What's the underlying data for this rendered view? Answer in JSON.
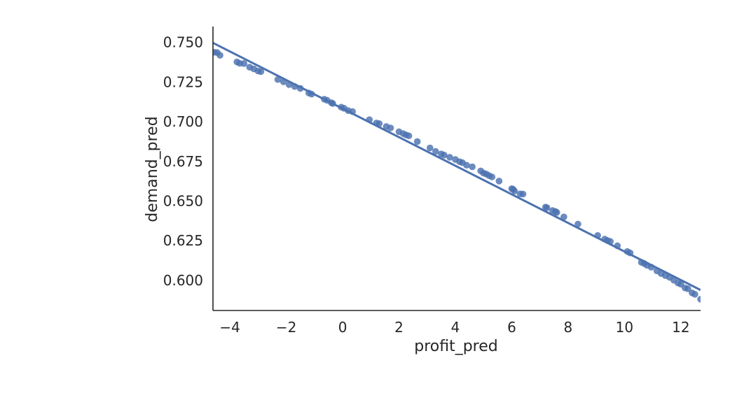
{
  "chart_data": {
    "type": "scatter",
    "title": "",
    "xlabel": "profit_pred",
    "ylabel": "demand_pred",
    "xlim": [
      -4.6,
      12.7
    ],
    "ylim": [
      0.581,
      0.76
    ],
    "x_ticks": [
      -4,
      -2,
      0,
      2,
      4,
      6,
      8,
      10,
      12
    ],
    "x_tick_labels": [
      "−4",
      "−2",
      "0",
      "2",
      "4",
      "6",
      "8",
      "10",
      "12"
    ],
    "y_ticks": [
      0.6,
      0.625,
      0.65,
      0.675,
      0.7,
      0.725,
      0.75
    ],
    "y_tick_labels": [
      "0.600",
      "0.625",
      "0.650",
      "0.675",
      "0.700",
      "0.725",
      "0.750"
    ],
    "grid": false,
    "spines": "left-bottom",
    "colors": {
      "point": "#4c72b0",
      "line": "#4c72b0",
      "axis": "#262626",
      "text": "#262626",
      "background": "#ffffff"
    },
    "regression_line": {
      "x": [
        -4.6,
        12.7
      ],
      "y": [
        0.7497,
        0.5939
      ]
    },
    "points": [
      [
        -4.55,
        0.7438
      ],
      [
        -4.45,
        0.7436
      ],
      [
        -4.35,
        0.7419
      ],
      [
        -3.75,
        0.7377
      ],
      [
        -3.65,
        0.7368
      ],
      [
        -3.5,
        0.7367
      ],
      [
        -3.3,
        0.7344
      ],
      [
        -3.15,
        0.7333
      ],
      [
        -3.0,
        0.732
      ],
      [
        -2.9,
        0.7316
      ],
      [
        -2.3,
        0.7266
      ],
      [
        -2.1,
        0.7252
      ],
      [
        -1.9,
        0.7234
      ],
      [
        -1.7,
        0.7222
      ],
      [
        -1.5,
        0.721
      ],
      [
        -1.2,
        0.7181
      ],
      [
        -1.1,
        0.7174
      ],
      [
        -0.65,
        0.7142
      ],
      [
        -0.55,
        0.7135
      ],
      [
        -0.4,
        0.712
      ],
      [
        -0.35,
        0.7115
      ],
      [
        -0.05,
        0.7092
      ],
      [
        0.05,
        0.7085
      ],
      [
        0.2,
        0.707
      ],
      [
        0.35,
        0.7064
      ],
      [
        0.95,
        0.7013
      ],
      [
        1.2,
        0.6992
      ],
      [
        1.3,
        0.6988
      ],
      [
        1.55,
        0.697
      ],
      [
        1.7,
        0.6961
      ],
      [
        2.0,
        0.6937
      ],
      [
        2.15,
        0.6925
      ],
      [
        2.25,
        0.6917
      ],
      [
        2.35,
        0.6911
      ],
      [
        2.65,
        0.6875
      ],
      [
        3.1,
        0.6835
      ],
      [
        3.3,
        0.6813
      ],
      [
        3.5,
        0.6797
      ],
      [
        3.6,
        0.679
      ],
      [
        3.8,
        0.6776
      ],
      [
        4.0,
        0.6762
      ],
      [
        4.15,
        0.6748
      ],
      [
        4.25,
        0.6742
      ],
      [
        4.4,
        0.6726
      ],
      [
        4.6,
        0.6716
      ],
      [
        4.9,
        0.669
      ],
      [
        5.0,
        0.6676
      ],
      [
        5.1,
        0.667
      ],
      [
        5.2,
        0.666
      ],
      [
        5.3,
        0.6652
      ],
      [
        5.55,
        0.6626
      ],
      [
        6.0,
        0.6578
      ],
      [
        6.05,
        0.6574
      ],
      [
        6.1,
        0.6563
      ],
      [
        6.3,
        0.6545
      ],
      [
        6.4,
        0.6544
      ],
      [
        7.2,
        0.6462
      ],
      [
        7.25,
        0.6458
      ],
      [
        7.45,
        0.644
      ],
      [
        7.55,
        0.6434
      ],
      [
        7.6,
        0.6428
      ],
      [
        7.85,
        0.64
      ],
      [
        8.35,
        0.6355
      ],
      [
        9.05,
        0.6283
      ],
      [
        9.3,
        0.626
      ],
      [
        9.4,
        0.6251
      ],
      [
        9.5,
        0.6245
      ],
      [
        9.75,
        0.6218
      ],
      [
        10.1,
        0.6182
      ],
      [
        10.2,
        0.6173
      ],
      [
        10.6,
        0.6114
      ],
      [
        10.7,
        0.6106
      ],
      [
        10.8,
        0.6095
      ],
      [
        10.95,
        0.6083
      ],
      [
        11.15,
        0.606
      ],
      [
        11.3,
        0.6043
      ],
      [
        11.45,
        0.603
      ],
      [
        11.6,
        0.6019
      ],
      [
        11.75,
        0.6001
      ],
      [
        11.9,
        0.5983
      ],
      [
        12.0,
        0.5976
      ],
      [
        12.15,
        0.5952
      ],
      [
        12.25,
        0.5947
      ],
      [
        12.4,
        0.5921
      ],
      [
        12.5,
        0.5912
      ],
      [
        12.7,
        0.5881
      ]
    ]
  }
}
